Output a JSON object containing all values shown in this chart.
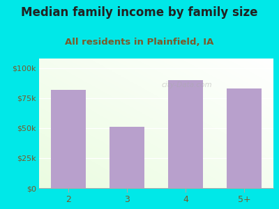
{
  "title": "Median family income by family size",
  "subtitle": "All residents in Plainfield, IA",
  "categories": [
    "2",
    "3",
    "4",
    "5+"
  ],
  "values": [
    82000,
    51000,
    90000,
    83000
  ],
  "bar_color": "#b8a0cc",
  "outer_bg": "#00e8e8",
  "yticks": [
    0,
    25000,
    50000,
    75000,
    100000
  ],
  "ytick_labels": [
    "$0",
    "$25k",
    "$50k",
    "$75k",
    "$100k"
  ],
  "ylim": [
    0,
    108000
  ],
  "title_fontsize": 12,
  "subtitle_fontsize": 9.5,
  "title_color": "#222222",
  "subtitle_color": "#7a5a2a",
  "tick_label_color": "#7a5a2a",
  "watermark": "city-Data.com"
}
